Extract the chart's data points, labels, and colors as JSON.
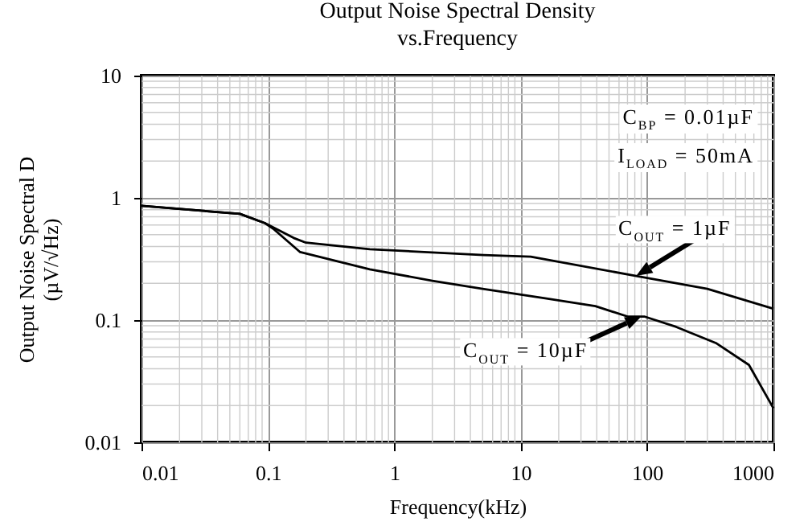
{
  "chart_data": {
    "type": "line",
    "title": "Output Noise Spectral Density",
    "subtitle": "vs.Frequency",
    "xlabel": "Frequency(kHz)",
    "ylabel": "Output Noise Spectral D\n(µV/√Hz)",
    "series": [
      {
        "color": "#000000",
        "x": [
          0.01,
          0.06,
          0.095,
          0.16,
          0.2,
          0.64,
          5.1,
          12,
          82,
          300,
          1000
        ],
        "values": [
          0.86,
          0.74,
          0.62,
          0.47,
          0.43,
          0.38,
          0.34,
          0.33,
          0.23,
          0.18,
          0.124
        ]
      },
      {
        "color": "#000000",
        "x": [
          0.01,
          0.06,
          0.095,
          0.11,
          0.18,
          0.64,
          2,
          5,
          16,
          25,
          39,
          70,
          95,
          170,
          350,
          640,
          1000
        ],
        "values": [
          0.86,
          0.74,
          0.62,
          0.56,
          0.36,
          0.26,
          0.21,
          0.18,
          0.15,
          0.14,
          0.13,
          0.107,
          0.107,
          0.088,
          0.065,
          0.043,
          0.019
        ]
      }
    ],
    "annotations": [
      "C$_{BP}$ = 0.01µF",
      "I$_{LOAD}$ = 50mA",
      {
        "text": "C$_{OUT}$ = 1µF",
        "x": 82,
        "y": 0.23
      },
      {
        "text": "C$_{OUT}$ = 10µF",
        "x": 90,
        "y": 0.107
      }
    ],
    "log": "xy",
    "xlim": [
      0.01,
      1000
    ],
    "ylim": [
      0.01,
      10
    ],
    "xticks": [
      0.01,
      0.1,
      1,
      10,
      100,
      1000
    ],
    "yticks": [
      0.01,
      0.1,
      1,
      10
    ],
    "grid": true,
    "line_style": "solid",
    "marker": "none"
  }
}
